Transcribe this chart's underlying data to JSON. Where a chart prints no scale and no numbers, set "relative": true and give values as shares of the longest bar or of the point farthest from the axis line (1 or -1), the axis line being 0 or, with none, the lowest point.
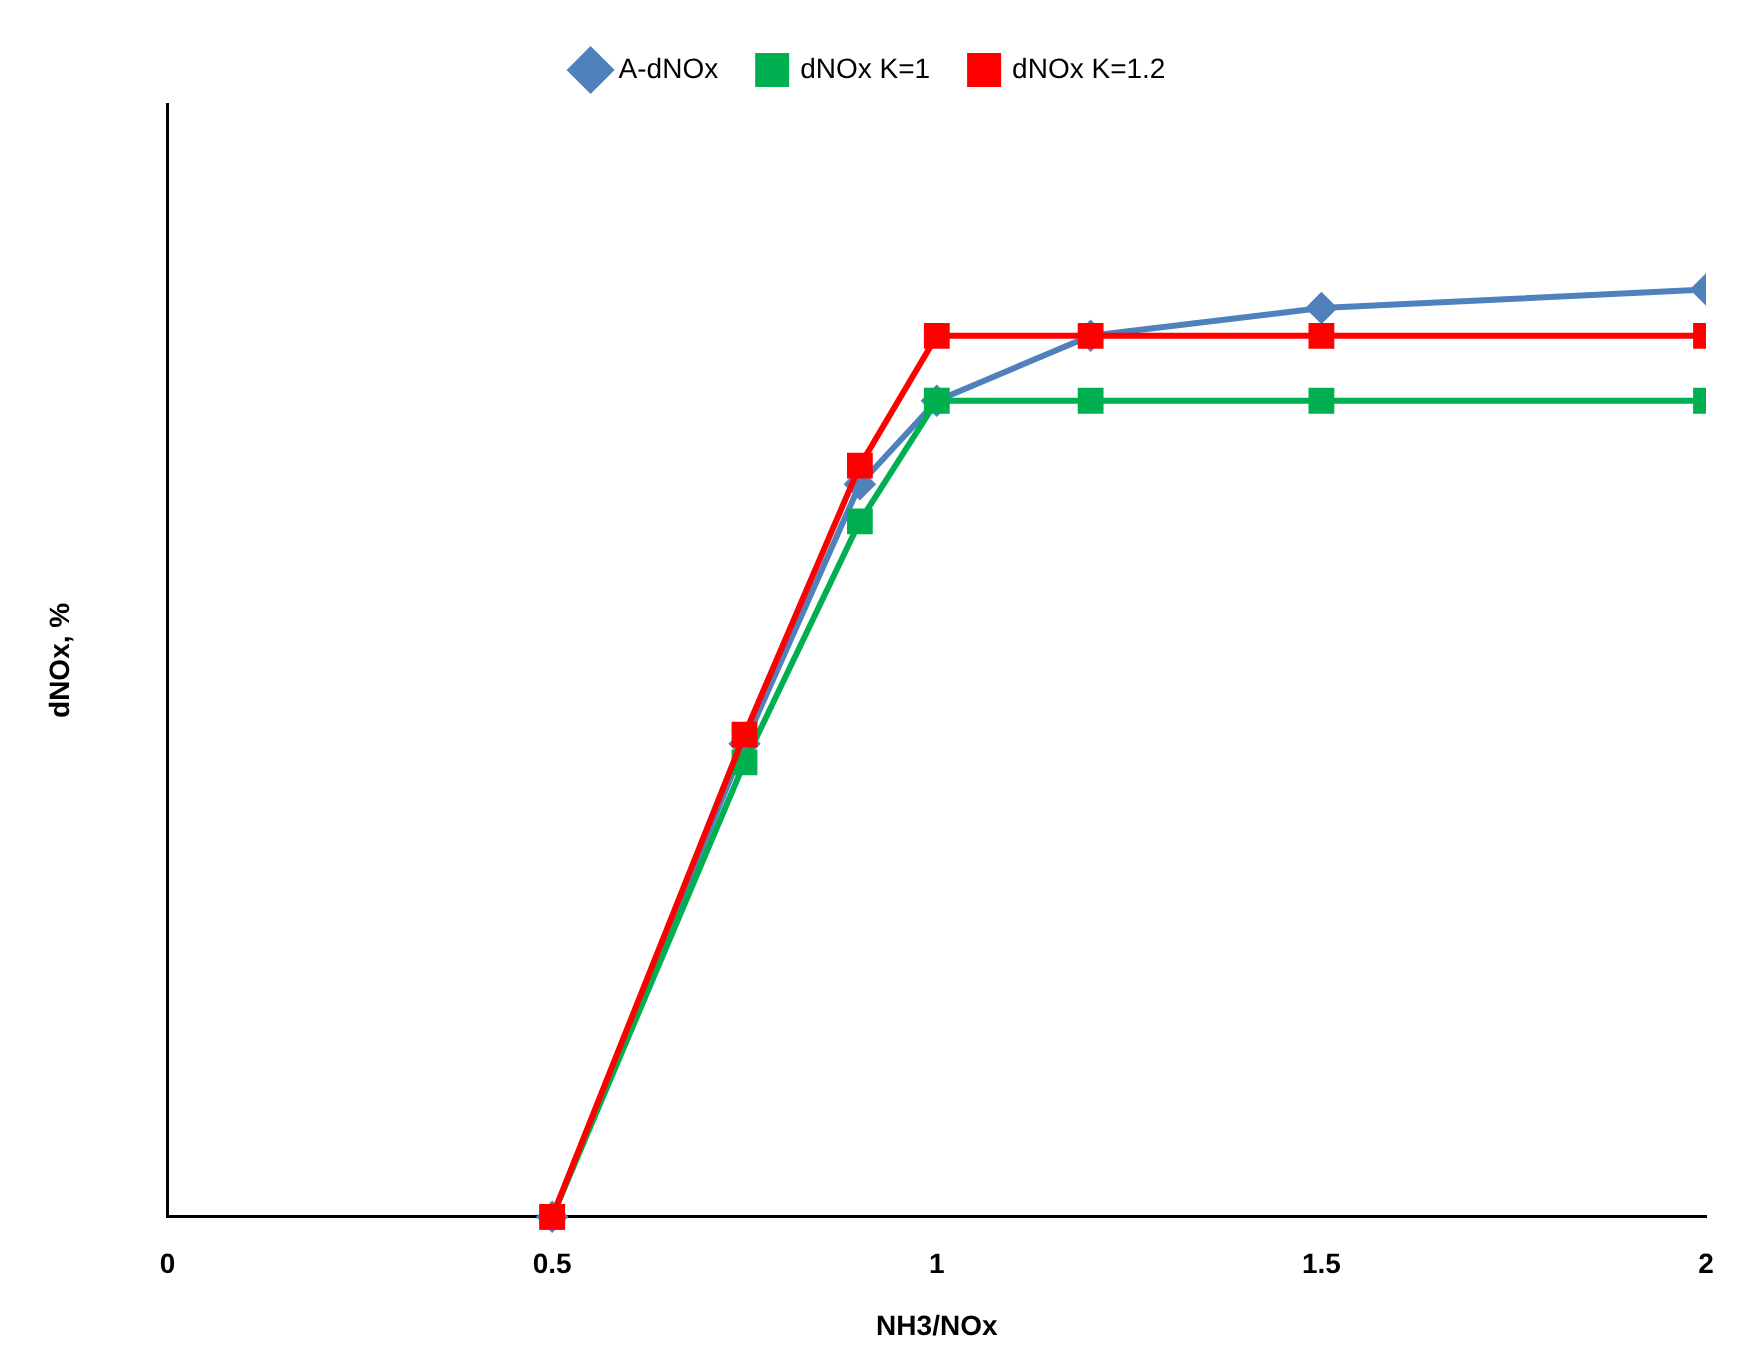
{
  "chart_data": {
    "type": "line",
    "relative": true,
    "xlabel": "NH3/NOx",
    "ylabel": "dNOx, %",
    "x": [
      0.5,
      0.75,
      0.9,
      1,
      1.2,
      1.5,
      2
    ],
    "xlim": [
      0,
      2
    ],
    "xticks": [
      0,
      0.5,
      1,
      1.5,
      2
    ],
    "grid": false,
    "legend": "top",
    "line_style": "solid",
    "series": [
      {
        "name": "A-dNOx",
        "color": "#4f81bd",
        "marker": "diamond",
        "values": [
          0,
          0.51,
          0.79,
          0.88,
          0.95,
          0.98,
          1
        ]
      },
      {
        "name": "dNOx K=1",
        "color": "#00b050",
        "marker": "square",
        "values": [
          0,
          0.49,
          0.75,
          0.88,
          0.88,
          0.88,
          0.88
        ]
      },
      {
        "name": "dNOx K=1.2",
        "color": "#ff0000",
        "marker": "square",
        "values": [
          0,
          0.52,
          0.81,
          0.95,
          0.95,
          0.95,
          0.95
        ]
      }
    ]
  }
}
